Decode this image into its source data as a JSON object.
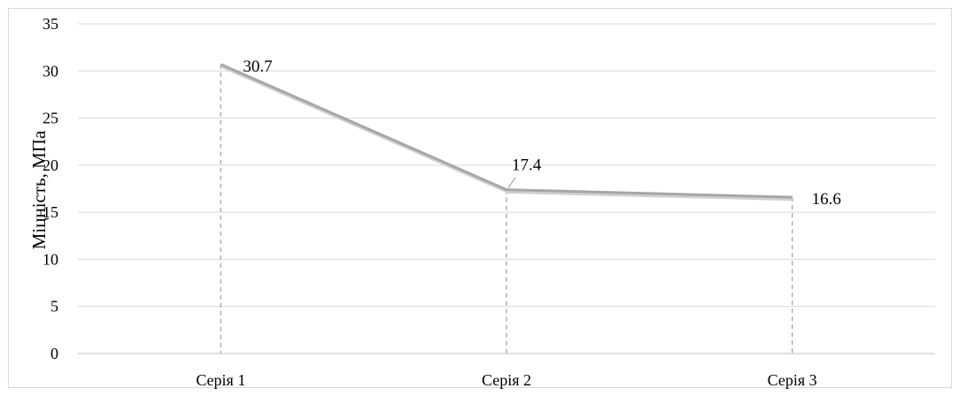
{
  "chart_data": {
    "type": "line",
    "categories": [
      "Серія 1",
      "Серія 2",
      "Серія 3"
    ],
    "values": [
      30.7,
      17.4,
      16.6
    ],
    "data_labels": [
      "30.7",
      "17.4",
      "16.6"
    ],
    "title": "",
    "xlabel": "",
    "ylabel": "Міцність, МПа",
    "ylim": [
      0,
      35
    ],
    "yticks": [
      0,
      5,
      10,
      15,
      20,
      25,
      30,
      35
    ],
    "ytick_labels": [
      "0",
      "5",
      "10",
      "15",
      "20",
      "25",
      "30",
      "35"
    ],
    "grid": true,
    "drop_lines": true,
    "legend": "none",
    "colors": {
      "line": "#a6a6a6",
      "shadow": "#d0d0d0",
      "grid": "#d9d9d9",
      "drop_line": "#a6a6a6",
      "axis": "#bfbfbf"
    }
  }
}
